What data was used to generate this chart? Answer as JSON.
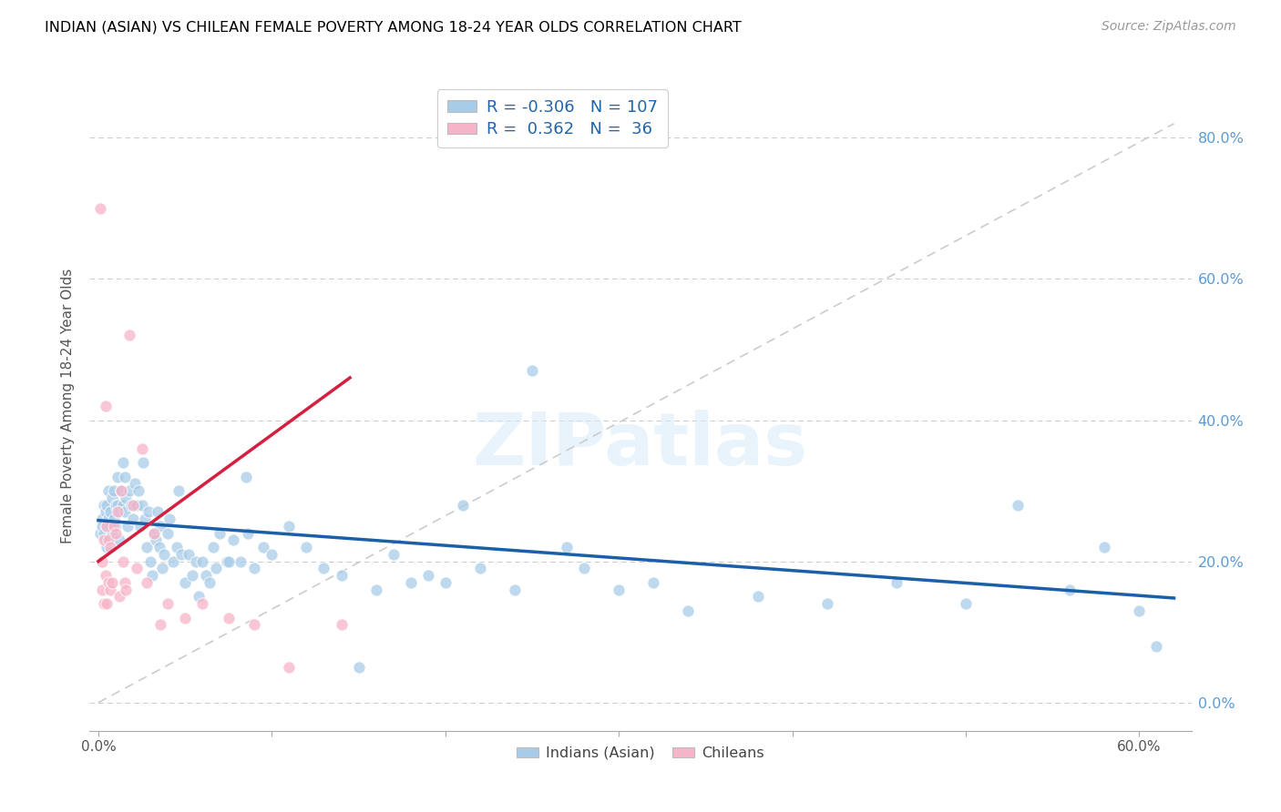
{
  "title": "INDIAN (ASIAN) VS CHILEAN FEMALE POVERTY AMONG 18-24 YEAR OLDS CORRELATION CHART",
  "source": "Source: ZipAtlas.com",
  "xlabel_ticks": [
    0.0,
    0.1,
    0.2,
    0.3,
    0.4,
    0.5,
    0.6
  ],
  "xlabel_labels": [
    "0.0%",
    "",
    "",
    "",
    "",
    "",
    "60.0%"
  ],
  "ylabel_ticks": [
    0.0,
    0.2,
    0.4,
    0.6,
    0.8
  ],
  "ylabel_labels": [
    "0.0%",
    "20.0%",
    "40.0%",
    "60.0%",
    "80.0%"
  ],
  "xlim": [
    -0.005,
    0.63
  ],
  "ylim": [
    -0.04,
    0.88
  ],
  "legend_blue_r": -0.306,
  "legend_blue_n": 107,
  "legend_pink_r": 0.362,
  "legend_pink_n": 36,
  "blue_color": "#a8cce8",
  "pink_color": "#f8b4c8",
  "blue_line_color": "#1a5fa8",
  "pink_line_color": "#d42040",
  "ref_line_color": "#cccccc",
  "watermark": "ZIPatlas",
  "blue_scatter_alpha": 0.75,
  "pink_scatter_alpha": 0.75,
  "blue_x": [
    0.001,
    0.002,
    0.002,
    0.003,
    0.003,
    0.004,
    0.004,
    0.005,
    0.005,
    0.005,
    0.006,
    0.006,
    0.007,
    0.007,
    0.007,
    0.008,
    0.008,
    0.009,
    0.009,
    0.01,
    0.01,
    0.011,
    0.011,
    0.012,
    0.012,
    0.013,
    0.014,
    0.014,
    0.015,
    0.015,
    0.016,
    0.017,
    0.018,
    0.019,
    0.02,
    0.021,
    0.022,
    0.023,
    0.024,
    0.025,
    0.026,
    0.027,
    0.028,
    0.029,
    0.03,
    0.031,
    0.032,
    0.033,
    0.034,
    0.035,
    0.036,
    0.037,
    0.038,
    0.04,
    0.041,
    0.043,
    0.045,
    0.046,
    0.048,
    0.05,
    0.052,
    0.054,
    0.056,
    0.058,
    0.06,
    0.062,
    0.064,
    0.066,
    0.068,
    0.07,
    0.074,
    0.078,
    0.082,
    0.086,
    0.09,
    0.095,
    0.1,
    0.11,
    0.12,
    0.13,
    0.14,
    0.16,
    0.18,
    0.2,
    0.22,
    0.24,
    0.27,
    0.3,
    0.34,
    0.38,
    0.42,
    0.46,
    0.5,
    0.53,
    0.56,
    0.58,
    0.6,
    0.61,
    0.075,
    0.085,
    0.15,
    0.17,
    0.19,
    0.21,
    0.25,
    0.28,
    0.32
  ],
  "blue_y": [
    0.24,
    0.26,
    0.25,
    0.28,
    0.24,
    0.27,
    0.23,
    0.25,
    0.28,
    0.22,
    0.26,
    0.3,
    0.27,
    0.23,
    0.25,
    0.29,
    0.24,
    0.26,
    0.3,
    0.28,
    0.25,
    0.32,
    0.28,
    0.27,
    0.23,
    0.3,
    0.28,
    0.34,
    0.32,
    0.27,
    0.29,
    0.25,
    0.3,
    0.28,
    0.26,
    0.31,
    0.28,
    0.3,
    0.25,
    0.28,
    0.34,
    0.26,
    0.22,
    0.27,
    0.2,
    0.18,
    0.24,
    0.23,
    0.27,
    0.22,
    0.25,
    0.19,
    0.21,
    0.24,
    0.26,
    0.2,
    0.22,
    0.3,
    0.21,
    0.17,
    0.21,
    0.18,
    0.2,
    0.15,
    0.2,
    0.18,
    0.17,
    0.22,
    0.19,
    0.24,
    0.2,
    0.23,
    0.2,
    0.24,
    0.19,
    0.22,
    0.21,
    0.25,
    0.22,
    0.19,
    0.18,
    0.16,
    0.17,
    0.17,
    0.19,
    0.16,
    0.22,
    0.16,
    0.13,
    0.15,
    0.14,
    0.17,
    0.14,
    0.28,
    0.16,
    0.22,
    0.13,
    0.08,
    0.2,
    0.32,
    0.05,
    0.21,
    0.18,
    0.28,
    0.47,
    0.19,
    0.17
  ],
  "pink_x": [
    0.001,
    0.002,
    0.002,
    0.003,
    0.003,
    0.004,
    0.004,
    0.005,
    0.005,
    0.006,
    0.006,
    0.007,
    0.007,
    0.008,
    0.009,
    0.01,
    0.011,
    0.012,
    0.013,
    0.014,
    0.015,
    0.016,
    0.018,
    0.02,
    0.022,
    0.025,
    0.028,
    0.032,
    0.036,
    0.04,
    0.05,
    0.06,
    0.075,
    0.09,
    0.11,
    0.14
  ],
  "pink_y": [
    0.7,
    0.2,
    0.16,
    0.23,
    0.14,
    0.42,
    0.18,
    0.25,
    0.14,
    0.17,
    0.23,
    0.16,
    0.22,
    0.17,
    0.25,
    0.24,
    0.27,
    0.15,
    0.3,
    0.2,
    0.17,
    0.16,
    0.52,
    0.28,
    0.19,
    0.36,
    0.17,
    0.24,
    0.11,
    0.14,
    0.12,
    0.14,
    0.12,
    0.11,
    0.05,
    0.11
  ],
  "blue_trend_x0": 0.0,
  "blue_trend_x1": 0.62,
  "blue_trend_y0": 0.258,
  "blue_trend_y1": 0.148,
  "pink_trend_x0": 0.0,
  "pink_trend_x1": 0.145,
  "pink_trend_y0": 0.2,
  "pink_trend_y1": 0.46,
  "ref_line_x0": 0.0,
  "ref_line_y0": 0.0,
  "ref_line_x1": 0.62,
  "ref_line_y1": 0.82
}
